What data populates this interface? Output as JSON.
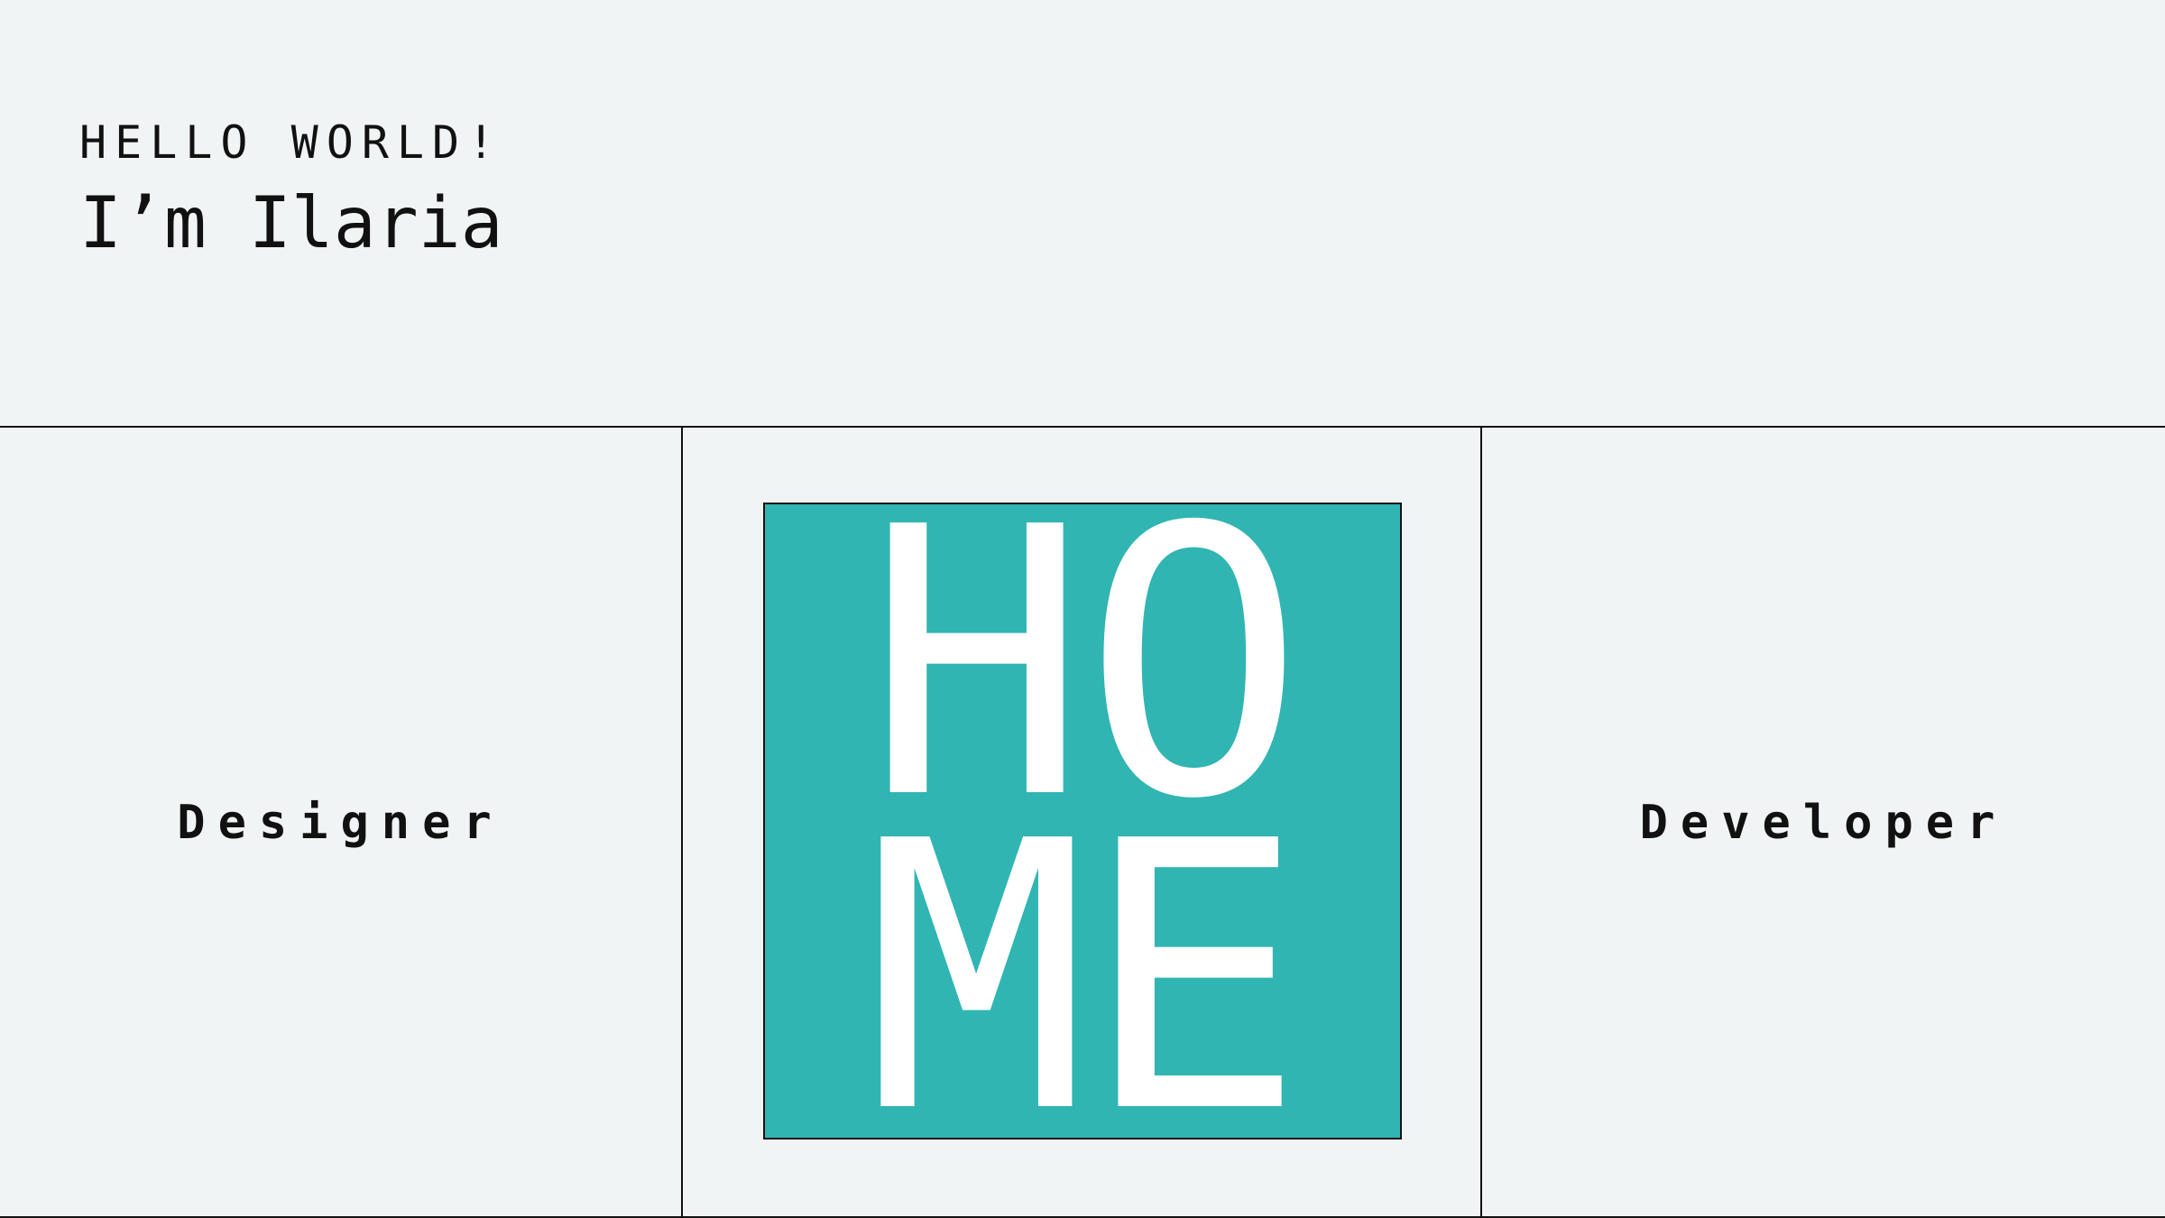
{
  "header": {
    "greeting": "HELLO WORLD!",
    "name": "I’m Ilaria"
  },
  "panels": {
    "left": {
      "label": "Designer"
    },
    "center": {
      "home_line_1": "HO",
      "home_line_2": "ME",
      "tile_color": "#30b5b3",
      "text_color": "#ffffff"
    },
    "right": {
      "label": "Developer"
    }
  },
  "colors": {
    "background": "#f1f4f5",
    "rule": "#111111",
    "accent": "#30b5b3"
  }
}
